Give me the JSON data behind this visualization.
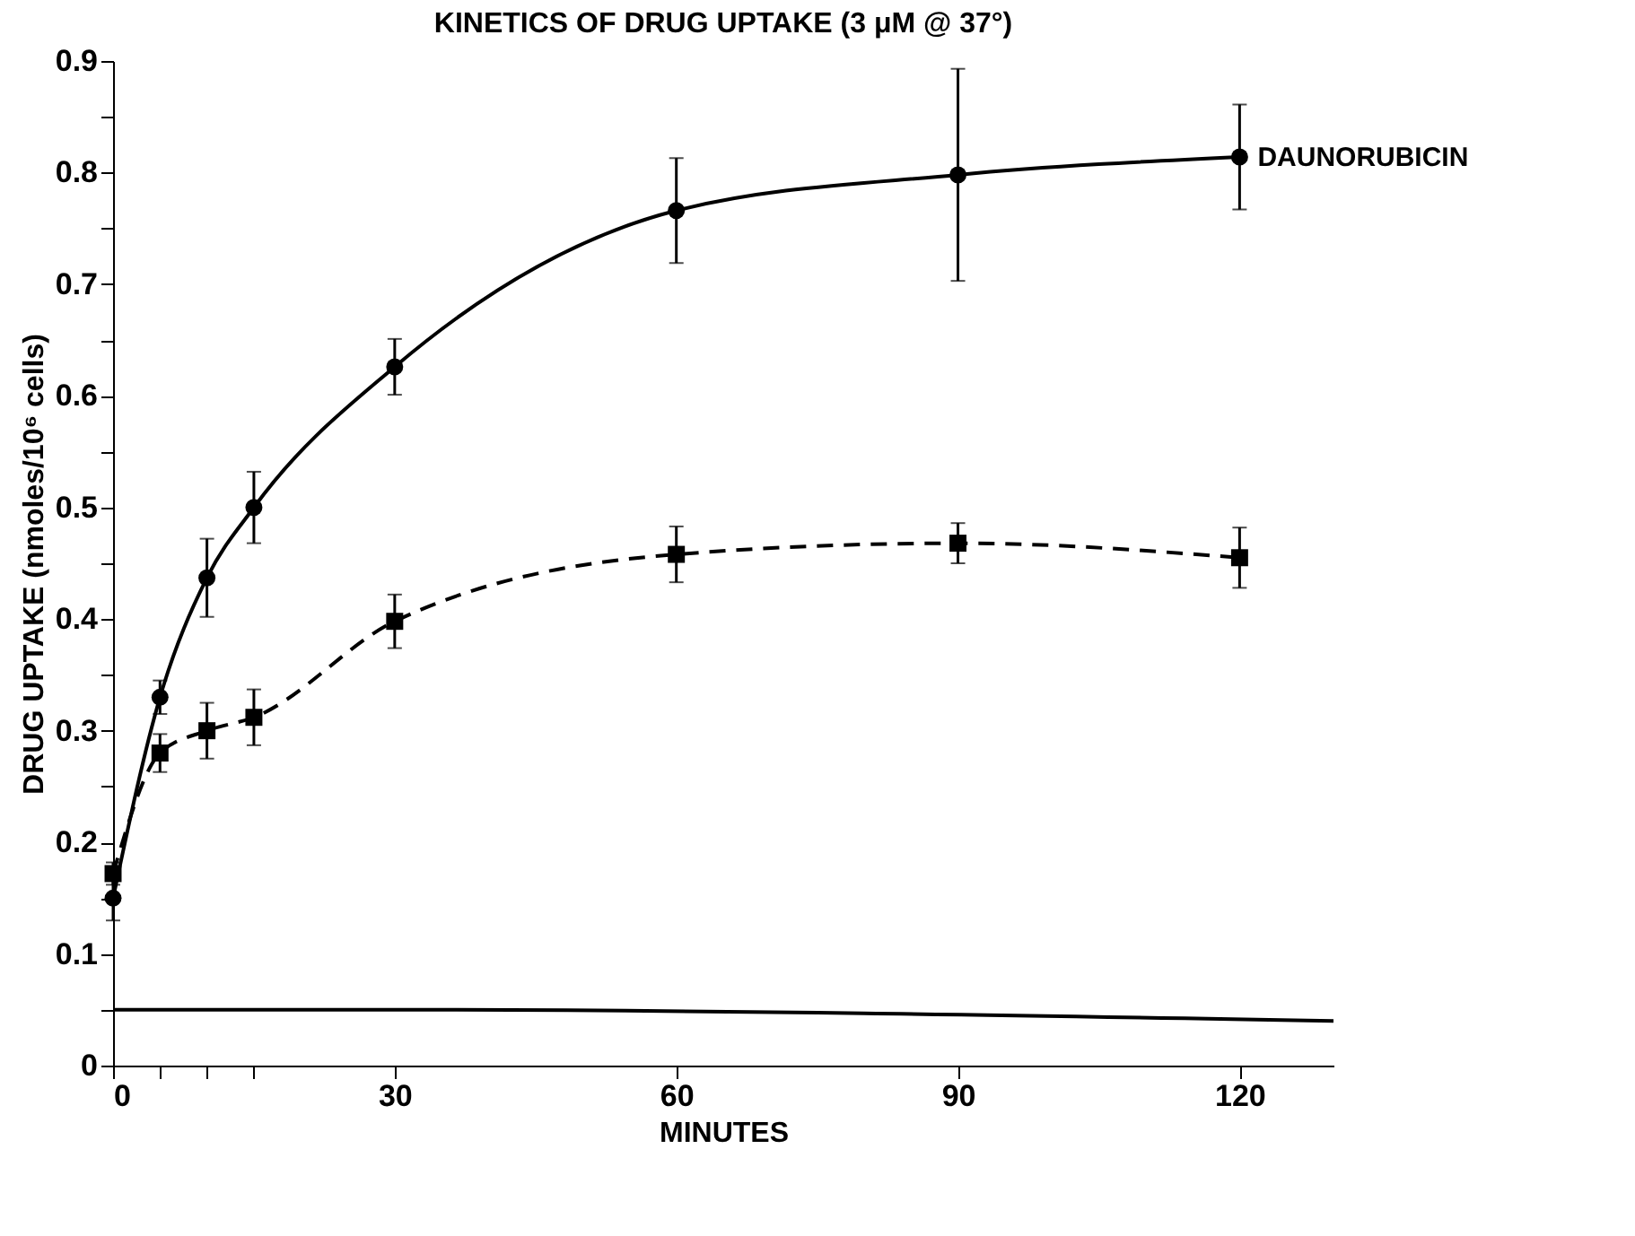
{
  "chart_data": {
    "type": "line",
    "title": "KINETICS OF DRUG UPTAKE (3 μM @ 37°)",
    "xlabel": "MINUTES",
    "ylabel": "DRUG UPTAKE (nmoles/10⁶ cells)",
    "xlim": [
      0,
      130
    ],
    "xticks": [
      0,
      {
        "value": 5,
        "label": null
      },
      {
        "value": 10,
        "label": null
      },
      {
        "value": 15,
        "label": null
      },
      30,
      60,
      90,
      120
    ],
    "ylim": [
      0,
      0.9
    ],
    "yticks": [
      0,
      {
        "value": 0.05,
        "label": null
      },
      0.1,
      {
        "value": 0.15,
        "label": null
      },
      0.2,
      {
        "value": 0.25,
        "label": null
      },
      0.3,
      {
        "value": 0.35,
        "label": null
      },
      0.4,
      {
        "value": 0.45,
        "label": null
      },
      0.5,
      {
        "value": 0.55,
        "label": null
      },
      0.6,
      {
        "value": 0.65,
        "label": null
      },
      0.7,
      {
        "value": 0.75,
        "label": null
      },
      0.8,
      {
        "value": 0.85,
        "label": null
      },
      0.9
    ],
    "grid": false,
    "series": [
      {
        "name": "DAUNORUBICIN",
        "color": "#000000",
        "marker": "circle",
        "line_style": "solid",
        "x": [
          0,
          5,
          10,
          15,
          30,
          60,
          90,
          120
        ],
        "values": [
          0.15,
          0.33,
          0.437,
          0.5,
          0.626,
          0.766,
          0.798,
          0.814
        ],
        "errors": [
          0.02,
          0.015,
          0.035,
          0.032,
          0.025,
          0.047,
          0.095,
          0.047
        ]
      },
      {
        "color": "#000000",
        "marker": "square",
        "line_style": "dashed",
        "x": [
          0,
          5,
          10,
          15,
          30,
          60,
          90,
          120
        ],
        "values": [
          0.172,
          0.28,
          0.3,
          0.312,
          0.398,
          0.458,
          0.468,
          0.455
        ],
        "errors": [
          0.01,
          0.017,
          0.025,
          0.025,
          0.024,
          0.025,
          0.018,
          0.027
        ]
      },
      {
        "color": "#000000",
        "marker": "none",
        "line_style": "solid",
        "x": [
          0,
          30,
          130
        ],
        "values": [
          0.05,
          0.05,
          0.04
        ]
      }
    ]
  }
}
